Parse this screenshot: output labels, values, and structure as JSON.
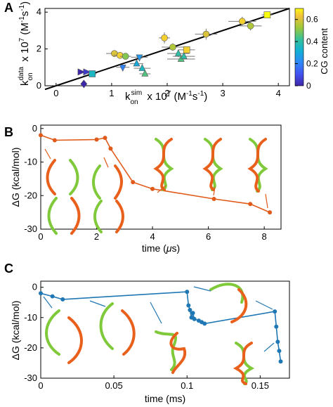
{
  "panels": {
    "a": "A",
    "b": "B",
    "c": "C"
  },
  "chart_data": [
    {
      "panel": "A",
      "type": "scatter",
      "xlabel": "k_on^sim x 10^7 (M^-1 s^-1)",
      "ylabel": "k_on^data x 10^7 (M^-1 s^-1)",
      "xlim": [
        -0.2,
        4.2
      ],
      "ylim": [
        0,
        4.2
      ],
      "xticks": [
        0,
        1,
        2,
        3,
        4
      ],
      "yticks": [
        0,
        2,
        4
      ],
      "fit_line": {
        "from": [
          -0.2,
          -0.2
        ],
        "to": [
          4.2,
          4.2
        ]
      },
      "colorbar": {
        "label": "CG content",
        "min": 0,
        "max": 0.7,
        "ticks": [
          0,
          0.2,
          0.4,
          0.6
        ]
      },
      "points": [
        {
          "x": 0.45,
          "y": 0.75,
          "xerr": 0.05,
          "yerr": 0.05,
          "cg": 0.0,
          "marker": "triangle-right"
        },
        {
          "x": 0.55,
          "y": 0.75,
          "xerr": 0.05,
          "yerr": 0.05,
          "cg": 0.05,
          "marker": "triangle-right"
        },
        {
          "x": 0.5,
          "y": 0.1,
          "xerr": 0.05,
          "yerr": 0.05,
          "cg": 0.0,
          "marker": "diamond"
        },
        {
          "x": 0.65,
          "y": 0.65,
          "xerr": 0.08,
          "yerr": 0.05,
          "cg": 0.35,
          "marker": "square"
        },
        {
          "x": 1.05,
          "y": 1.75,
          "xerr": 0.15,
          "yerr": 0.15,
          "cg": 0.6,
          "marker": "circle"
        },
        {
          "x": 1.15,
          "y": 1.65,
          "xerr": 0.12,
          "yerr": 0.12,
          "cg": 0.65,
          "marker": "circle"
        },
        {
          "x": 1.25,
          "y": 1.6,
          "xerr": 0.1,
          "yerr": 0.1,
          "cg": 0.5,
          "marker": "circle"
        },
        {
          "x": 1.2,
          "y": 1.0,
          "xerr": 0.12,
          "yerr": 0.1,
          "cg": 0.2,
          "marker": "triangle-down"
        },
        {
          "x": 1.5,
          "y": 1.55,
          "xerr": 0.15,
          "yerr": 0.1,
          "cg": 0.25,
          "marker": "triangle-down"
        },
        {
          "x": 1.45,
          "y": 1.2,
          "xerr": 0.12,
          "yerr": 0.1,
          "cg": 0.3,
          "marker": "triangle-up"
        },
        {
          "x": 1.55,
          "y": 0.95,
          "xerr": 0.15,
          "yerr": 0.1,
          "cg": 0.35,
          "marker": "triangle-up"
        },
        {
          "x": 1.6,
          "y": 0.65,
          "xerr": 0.1,
          "yerr": 0.1,
          "cg": 0.45,
          "marker": "triangle-up"
        },
        {
          "x": 1.95,
          "y": 2.6,
          "xerr": 0.1,
          "yerr": 0.3,
          "cg": 0.65,
          "marker": "circle"
        },
        {
          "x": 2.1,
          "y": 2.1,
          "xerr": 0.2,
          "yerr": 0.2,
          "cg": 0.55,
          "marker": "circle"
        },
        {
          "x": 2.2,
          "y": 1.75,
          "xerr": 0.2,
          "yerr": 0.2,
          "cg": 0.4,
          "marker": "triangle-up"
        },
        {
          "x": 2.25,
          "y": 1.45,
          "xerr": 0.25,
          "yerr": 0.15,
          "cg": 0.45,
          "marker": "triangle-up"
        },
        {
          "x": 2.3,
          "y": 1.6,
          "xerr": 0.2,
          "yerr": 0.15,
          "cg": 0.4,
          "marker": "triangle-up"
        },
        {
          "x": 2.35,
          "y": 1.95,
          "xerr": 0.15,
          "yerr": 0.15,
          "cg": 0.65,
          "marker": "square"
        },
        {
          "x": 2.7,
          "y": 2.8,
          "xerr": 0.2,
          "yerr": 0.3,
          "cg": 0.6,
          "marker": "circle"
        },
        {
          "x": 3.35,
          "y": 3.5,
          "xerr": 0.25,
          "yerr": 0.25,
          "cg": 0.65,
          "marker": "circle"
        },
        {
          "x": 3.5,
          "y": 3.25,
          "xerr": 0.2,
          "yerr": 0.25,
          "cg": 0.55,
          "marker": "circle"
        },
        {
          "x": 3.8,
          "y": 3.85,
          "xerr": 0.1,
          "yerr": 0.1,
          "cg": 0.7,
          "marker": "square"
        }
      ]
    },
    {
      "panel": "B",
      "type": "line",
      "xlabel": "time (μs)",
      "ylabel": "ΔG (kcal/mol)",
      "xlim": [
        0,
        8.6
      ],
      "ylim": [
        -30,
        1
      ],
      "xticks": [
        0,
        2,
        4,
        6,
        8
      ],
      "yticks": [
        0,
        -10,
        -20,
        -30
      ],
      "color": "#e05a1a",
      "x": [
        0.0,
        0.5,
        2.0,
        2.3,
        2.5,
        3.3,
        4.0,
        6.2,
        7.5,
        8.2
      ],
      "y": [
        -2.0,
        -3.5,
        -3.3,
        -2.8,
        -6.0,
        -16.0,
        -18.0,
        -21.0,
        -22.5,
        -25.0
      ]
    },
    {
      "panel": "C",
      "type": "line",
      "xlabel": "time (ms)",
      "ylabel": "ΔG (kcal/mol)",
      "xlim": [
        0,
        0.17
      ],
      "ylim": [
        -30,
        2
      ],
      "xticks": [
        0,
        0.05,
        0.1,
        0.15
      ],
      "yticks": [
        0,
        -10,
        -20,
        -30
      ],
      "color": "#1f77b4",
      "x": [
        0.0,
        0.008,
        0.015,
        0.1,
        0.101,
        0.102,
        0.103,
        0.104,
        0.105,
        0.108,
        0.11,
        0.112,
        0.16,
        0.161,
        0.162,
        0.163,
        0.164
      ],
      "y": [
        -2.0,
        -3.0,
        -4.0,
        -1.5,
        -6.0,
        -7.5,
        -10.0,
        -8.5,
        -10.5,
        -11.0,
        -11.5,
        -12.0,
        -8.0,
        -13.0,
        -18.0,
        -21.0,
        -24.5
      ]
    }
  ]
}
